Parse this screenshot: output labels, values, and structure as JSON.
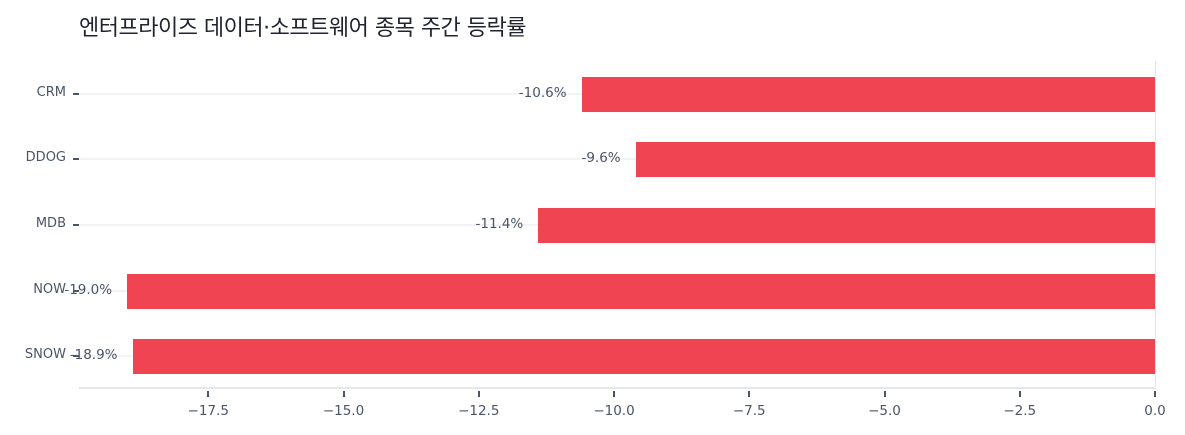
{
  "title": "엔터프라이즈 데이터·소프트웨어 종목 주간 등락률",
  "colors": {
    "bar": "#f04452",
    "text": "#4a5565",
    "title": "#1f2430",
    "grid": "#f2f3f5",
    "axis": "#e5e6ea"
  },
  "chart_data": {
    "type": "bar",
    "orientation": "horizontal",
    "title": "엔터프라이즈 데이터·소프트웨어 종목 주간 등락률",
    "xlabel": "",
    "ylabel": "",
    "categories": [
      "CRM",
      "DDOG",
      "MDB",
      "NOW",
      "SNOW"
    ],
    "values": [
      -10.6,
      -9.6,
      -11.4,
      -19.0,
      -18.9
    ],
    "value_labels": [
      "-10.6%",
      "-9.6%",
      "-11.4%",
      "-19.0%",
      "-18.9%"
    ],
    "xlim": [
      -19.9,
      0.0
    ],
    "xticks": [
      "-17.5",
      "-15.0",
      "-12.5",
      "-10.0",
      "-7.5",
      "-5.0",
      "-2.5",
      "0.0"
    ],
    "grid": "horizontal faint",
    "legend": "none"
  }
}
